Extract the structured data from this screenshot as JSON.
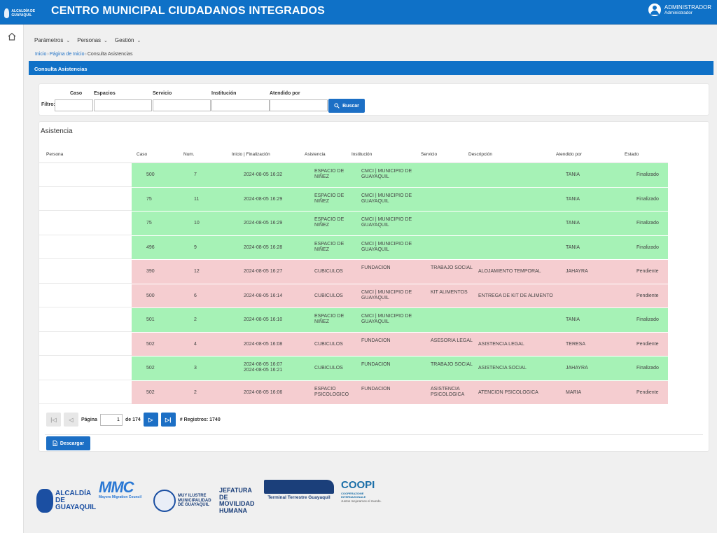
{
  "header": {
    "logo_text": "ALCALDÍA DE GUAYAQUIL",
    "title": "CENTRO MUNICIPAL CIUDADANOS INTEGRADOS",
    "user_name": "ADMINISTRADOR",
    "user_role": "Administrador"
  },
  "menu": [
    {
      "label": "Parámetros"
    },
    {
      "label": "Personas"
    },
    {
      "label": "Gestión"
    }
  ],
  "breadcrumb": {
    "home": "Inicio",
    "page": "Página de Inicio",
    "current": "Consulta Asistencias"
  },
  "section_title": "Consulta Asistencias",
  "filter": {
    "label": "Filtro:",
    "columns": [
      {
        "label": "Caso",
        "value": ""
      },
      {
        "label": "Espacios",
        "value": ""
      },
      {
        "label": "Servicio",
        "value": ""
      },
      {
        "label": "Institución",
        "value": ""
      },
      {
        "label": "Atendido por",
        "value": ""
      }
    ],
    "search_label": "Buscar"
  },
  "table": {
    "title": "Asistencia",
    "headers": [
      "Persona",
      "Caso",
      "Num.",
      "Inicio | Finalización",
      "Asistencia",
      "Institución",
      "Servicio",
      "Descripción",
      "Atendido por",
      "Estado"
    ],
    "rows": [
      {
        "persona": "",
        "caso": "500",
        "num": "7",
        "fecha": "2024-08-05 16:32",
        "fecha2": "",
        "asistencia": "ESPACIO DE NIÑEZ",
        "institucion": "CMCI | MUNICIPIO DE GUAYAQUIL",
        "servicio": "",
        "descripcion": "",
        "atendido": "TANIA",
        "estado": "Finalizado",
        "status": "ok"
      },
      {
        "persona": "",
        "caso": "75",
        "num": "11",
        "fecha": "2024-08-05 16:29",
        "fecha2": "",
        "asistencia": "ESPACIO DE NIÑEZ",
        "institucion": "CMCI | MUNICIPIO DE GUAYAQUIL",
        "servicio": "",
        "descripcion": "",
        "atendido": "TANIA",
        "estado": "Finalizado",
        "status": "ok"
      },
      {
        "persona": "",
        "caso": "75",
        "num": "10",
        "fecha": "2024-08-05 16:29",
        "fecha2": "",
        "asistencia": "ESPACIO DE NIÑEZ",
        "institucion": "CMCI | MUNICIPIO DE GUAYAQUIL",
        "servicio": "",
        "descripcion": "",
        "atendido": "TANIA",
        "estado": "Finalizado",
        "status": "ok"
      },
      {
        "persona": "",
        "caso": "496",
        "num": "9",
        "fecha": "2024-08-05 16:28",
        "fecha2": "",
        "asistencia": "ESPACIO DE NIÑEZ",
        "institucion": "CMCI | MUNICIPIO DE GUAYAQUIL",
        "servicio": "",
        "descripcion": "",
        "atendido": "TANIA",
        "estado": "Finalizado",
        "status": "ok"
      },
      {
        "persona": "",
        "caso": "390",
        "num": "12",
        "fecha": "2024-08-05 16:27",
        "fecha2": "",
        "asistencia": "CUBICULOS",
        "institucion": "FUNDACION",
        "servicio": "TRABAJO SOCIAL",
        "descripcion": "ALOJAMIENTO TEMPORAL",
        "atendido": "JAHAYRA",
        "estado": "Pendiente",
        "status": "pend"
      },
      {
        "persona": "",
        "caso": "500",
        "num": "6",
        "fecha": "2024-08-05 16:14",
        "fecha2": "",
        "asistencia": "CUBICULOS",
        "institucion": "CMCI | MUNICIPIO DE GUAYAQUIL",
        "servicio": "KIT ALIMENTOS",
        "descripcion": "ENTREGA DE KIT DE ALIMENTO",
        "atendido": "",
        "estado": "Pendiente",
        "status": "pend"
      },
      {
        "persona": "",
        "caso": "501",
        "num": "2",
        "fecha": "2024-08-05 16:10",
        "fecha2": "",
        "asistencia": "ESPACIO DE NIÑEZ",
        "institucion": "CMCI | MUNICIPIO DE GUAYAQUIL",
        "servicio": "",
        "descripcion": "",
        "atendido": "TANIA",
        "estado": "Finalizado",
        "status": "ok"
      },
      {
        "persona": "",
        "caso": "502",
        "num": "4",
        "fecha": "2024-08-05 16:08",
        "fecha2": "",
        "asistencia": "CUBICULOS",
        "institucion": "FUNDACION",
        "servicio": "ASESORIA LEGAL",
        "descripcion": "ASISTENCIA LEGAL",
        "atendido": "TERESA",
        "estado": "Pendiente",
        "status": "pend"
      },
      {
        "persona": "",
        "caso": "502",
        "num": "3",
        "fecha": "2024-08-05 16:07",
        "fecha2": "2024-08-05 16:21",
        "asistencia": "CUBICULOS",
        "institucion": "FUNDACION",
        "servicio": "TRABAJO SOCIAL",
        "descripcion": "ASISTENCIA SOCIAL",
        "atendido": "JAHAYRA",
        "estado": "Finalizado",
        "status": "ok"
      },
      {
        "persona": "",
        "caso": "502",
        "num": "2",
        "fecha": "2024-08-05 16:06",
        "fecha2": "",
        "asistencia": "ESPACIO PSICOLOGICO",
        "institucion": "FUNDACION",
        "servicio": "ASISTENCIA PSICOLOGICA",
        "descripcion": "ATENCION PSICOLOGICA",
        "atendido": "MARIA",
        "estado": "Pendiente",
        "status": "pend"
      }
    ]
  },
  "pager": {
    "page_label": "Página",
    "page_value": "1",
    "of_label": "de 174",
    "records_label": "# Registros: 1740"
  },
  "download_label": "Descargar",
  "footer": {
    "alcaldia": "ALCALDÍA DE GUAYAQUIL",
    "mmc": "MMC",
    "mmc_sub": "Mayors Migration Council",
    "municipalidad": "MUY ILUSTRE MUNICIPALIDAD DE GUAYAQUIL",
    "jefatura": "JEFATURA DE MOVILIDAD HUMANA",
    "terminal": "Terminal Terrestre Guayaquil",
    "coopi": "COOPI",
    "coopi_sub": "COOPERAZIONE INTERNAZIONALE",
    "coopi_motto": "Juntos mejoramos el mundo."
  },
  "colors": {
    "primary": "#0f71c7",
    "finalizado": "#a6f2b6",
    "pendiente": "#f5cdd0"
  },
  "icons": [
    "home-icon",
    "search-icon",
    "download-icon",
    "user-avatar-icon"
  ]
}
